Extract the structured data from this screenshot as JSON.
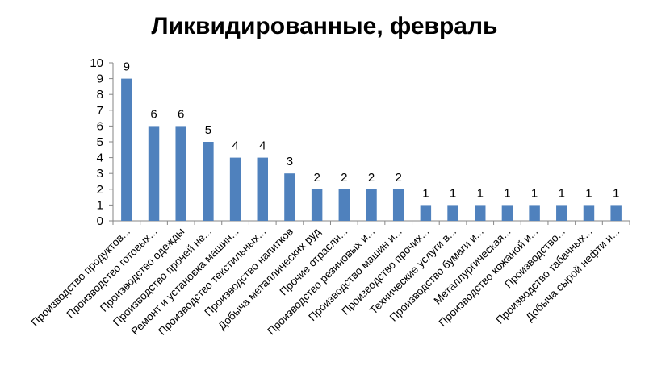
{
  "chart_data": {
    "type": "bar",
    "title": "Ликвидированные, февраль",
    "xlabel": "",
    "ylabel": "",
    "ylim": [
      0,
      10
    ],
    "yticks": [
      0,
      1,
      2,
      3,
      4,
      5,
      6,
      7,
      8,
      9,
      10
    ],
    "grid": false,
    "legend": "none",
    "bar_color": "#4F81BD",
    "categories": [
      "Производство продуктов...",
      "Производство готовых...",
      "Производство одежды",
      "Производство прочей не...",
      "Ремонт и установка машин...",
      "Производство текстильных...",
      "Производство напитков",
      "Добыча металлических руд",
      "Прочие отрасли...",
      "Производство резиновых и...",
      "Производство машин и...",
      "Производство прочих...",
      "Технические услуги в...",
      "Производство бумаги и...",
      "Металлургическая...",
      "Производство кожаной и...",
      "Производство...",
      "Производство табачных...",
      "Добыча сырой нефти и..."
    ],
    "values": [
      9,
      6,
      6,
      5,
      4,
      4,
      3,
      2,
      2,
      2,
      2,
      1,
      1,
      1,
      1,
      1,
      1,
      1,
      1
    ]
  }
}
